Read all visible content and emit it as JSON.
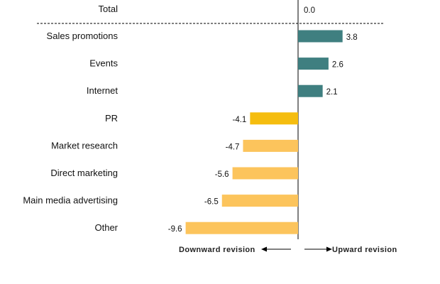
{
  "chart_data": {
    "type": "bar",
    "orientation": "horizontal",
    "title": "",
    "xlabel": "",
    "ylabel": "",
    "xlim": [
      -10,
      4
    ],
    "grid": false,
    "legend": "none",
    "total": {
      "label": "Total",
      "value": 0.0,
      "display": "0.0"
    },
    "categories": [
      "Sales promotions",
      "Events",
      "Internet",
      "PR",
      "Market research",
      "Direct marketing",
      "Main media advertising",
      "Other"
    ],
    "values": [
      3.8,
      2.6,
      2.1,
      -4.1,
      -4.7,
      -5.6,
      -6.5,
      -9.6
    ],
    "value_labels": [
      "3.8",
      "2.6",
      "2.1",
      "-4.1",
      "-4.7",
      "-5.6",
      "-6.5",
      "-9.6"
    ],
    "annotations": {
      "downward": "Downward revision",
      "upward": "Upward revision"
    },
    "colors": {
      "positive": "#3f7f80",
      "highlight": "#f5bd0f",
      "negative": "#fcc45c",
      "axis": "#000000"
    },
    "highlight_category": "PR"
  }
}
